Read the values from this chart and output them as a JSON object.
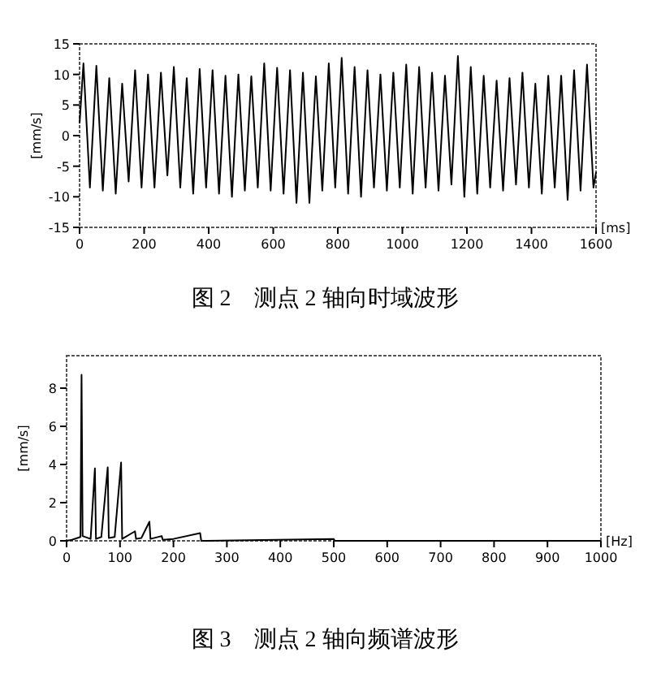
{
  "chart_data": [
    {
      "type": "line",
      "title": "图 2　测点 2 轴向时域波形",
      "xlabel": "[ms]",
      "ylabel": "[mm/s]",
      "xlim": [
        0,
        1600
      ],
      "ylim": [
        -15,
        15
      ],
      "xticks": [
        0,
        200,
        400,
        600,
        800,
        1000,
        1200,
        1400,
        1600
      ],
      "yticks": [
        -15,
        -10,
        -5,
        0,
        5,
        10,
        15
      ],
      "x": [
        0,
        12,
        32,
        52,
        72,
        92,
        112,
        132,
        152,
        172,
        192,
        212,
        232,
        252,
        272,
        292,
        312,
        332,
        352,
        372,
        392,
        412,
        432,
        452,
        472,
        492,
        512,
        532,
        552,
        572,
        592,
        612,
        632,
        652,
        672,
        692,
        712,
        732,
        752,
        772,
        792,
        812,
        832,
        852,
        872,
        892,
        912,
        932,
        952,
        972,
        992,
        1012,
        1032,
        1052,
        1072,
        1092,
        1112,
        1132,
        1152,
        1172,
        1192,
        1212,
        1232,
        1252,
        1272,
        1292,
        1312,
        1332,
        1352,
        1372,
        1392,
        1412,
        1432,
        1452,
        1472,
        1492,
        1512,
        1532,
        1552,
        1572,
        1592,
        1600
      ],
      "series": [
        {
          "color": "#000000",
          "values": [
            2,
            11.8,
            -8.5,
            11.4,
            -9,
            9.4,
            -9.5,
            8.5,
            -7.5,
            10.7,
            -8.5,
            10,
            -8.5,
            10.3,
            -6.5,
            11.2,
            -8.5,
            9.4,
            -9.5,
            10.9,
            -8.5,
            10.7,
            -9.5,
            9.8,
            -10,
            10,
            -9,
            9.7,
            -8.5,
            11.8,
            -9,
            11.1,
            -9.5,
            10.7,
            -11,
            10.3,
            -11,
            9.7,
            -9,
            11.8,
            -8.5,
            12.7,
            -9.5,
            11.2,
            -10,
            10.7,
            -8.5,
            10,
            -9,
            10.3,
            -8.5,
            11.6,
            -9.5,
            11.2,
            -8.5,
            10.3,
            -9,
            9.8,
            -8,
            13,
            -10,
            11.2,
            -9.5,
            9.8,
            -8.5,
            9,
            -9,
            9.4,
            -8,
            10.3,
            -8.5,
            8.5,
            -9.5,
            9.8,
            -8.5,
            9.8,
            -10.5,
            10.7,
            -9,
            11.6,
            -8.5,
            -6
          ]
        }
      ]
    },
    {
      "type": "line",
      "title": "图 3　测点 2 轴向频谱波形",
      "xlabel": "[Hz]",
      "ylabel": "[mm/s]",
      "xlim": [
        0,
        1000
      ],
      "ylim": [
        0,
        9.7
      ],
      "xticks": [
        0,
        100,
        200,
        300,
        400,
        500,
        600,
        700,
        800,
        900,
        1000
      ],
      "yticks": [
        0,
        2,
        4,
        6,
        8
      ],
      "x": [
        0,
        10,
        26,
        28,
        30,
        45,
        53,
        55,
        65,
        77,
        79,
        90,
        102,
        104,
        128,
        130,
        140,
        155,
        157,
        178,
        180,
        200,
        250,
        252,
        500,
        502,
        1000
      ],
      "series": [
        {
          "color": "#000000",
          "values": [
            0,
            0.05,
            0.2,
            8.7,
            0.25,
            0.1,
            3.8,
            0.1,
            0.2,
            3.85,
            0.15,
            0.2,
            4.1,
            0.1,
            0.5,
            0.1,
            0.15,
            1,
            0.1,
            0.25,
            0.05,
            0.1,
            0.4,
            0,
            0.1,
            0,
            0
          ]
        }
      ]
    }
  ]
}
